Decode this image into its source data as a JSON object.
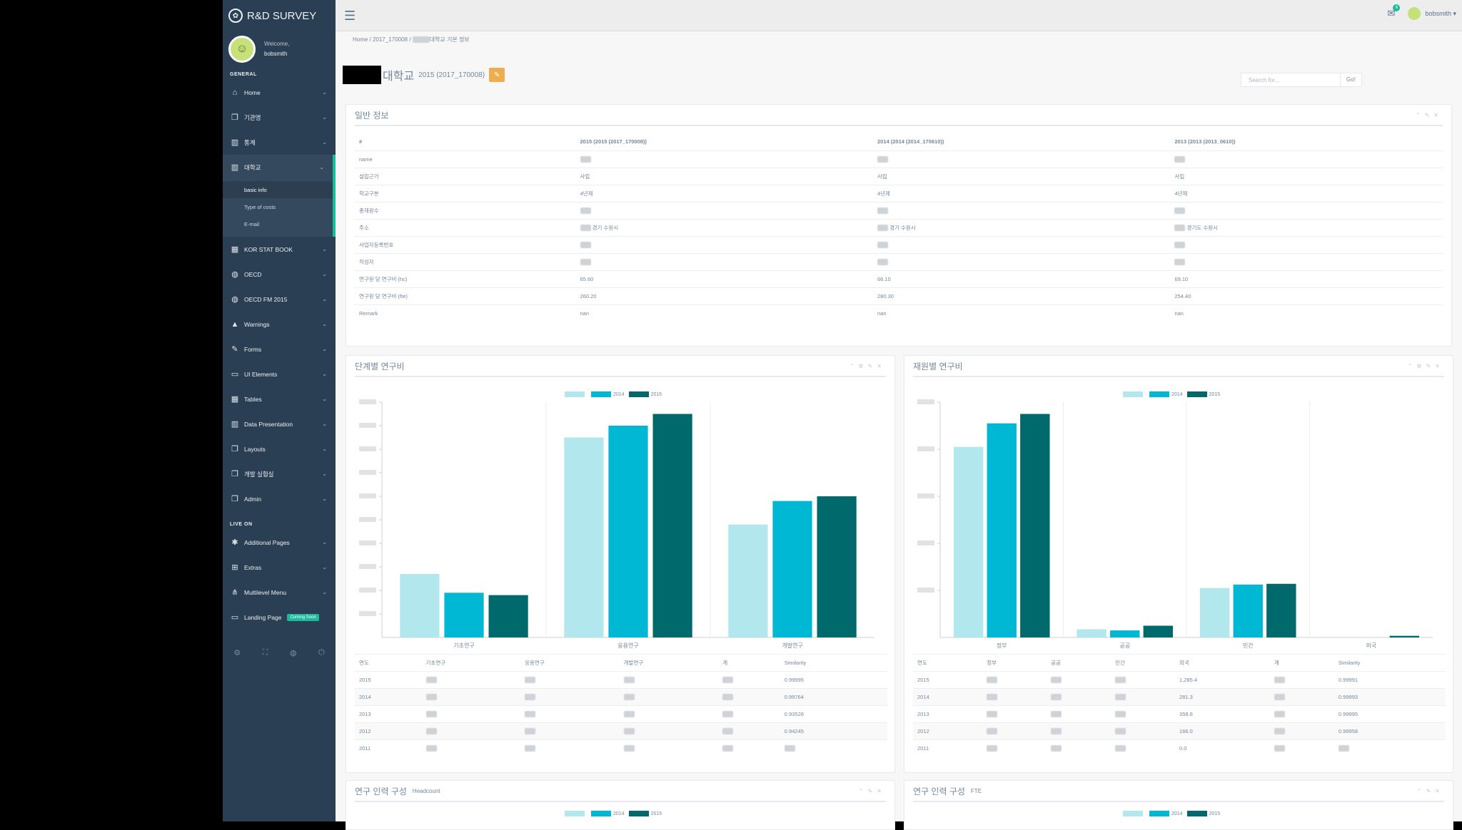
{
  "brand": {
    "title": "R&D SURVEY",
    "icon": "paw-icon"
  },
  "profile": {
    "welcome": "Welcome,",
    "name": "bobsmith"
  },
  "sidebar": {
    "general_label": "GENERAL",
    "items": [
      {
        "label": "Home",
        "icon": "home-icon"
      },
      {
        "label": "기관명",
        "icon": "clone-icon"
      },
      {
        "label": "통계",
        "icon": "bar-chart-icon"
      },
      {
        "label": "대학교",
        "icon": "bar-chart-icon"
      }
    ],
    "sub_items": [
      "basic info",
      "Type of costs",
      "E-mail"
    ],
    "items2": [
      {
        "label": "KOR STAT BOOK",
        "icon": "table-icon"
      },
      {
        "label": "OECD",
        "icon": "globe-icon"
      },
      {
        "label": "OECD FM 2015",
        "icon": "globe-icon"
      },
      {
        "label": "Warnings",
        "icon": "warning-icon"
      },
      {
        "label": "Forms",
        "icon": "edit-icon"
      },
      {
        "label": "UI Elements",
        "icon": "desktop-icon"
      },
      {
        "label": "Tables",
        "icon": "table-icon"
      },
      {
        "label": "Data Presentation",
        "icon": "bar-chart-icon"
      },
      {
        "label": "Layouts",
        "icon": "clone-icon"
      },
      {
        "label": "개발 실험실",
        "icon": "clone-icon"
      },
      {
        "label": "Admin",
        "icon": "clone-icon"
      }
    ],
    "live_label": "LIVE ON",
    "items3": [
      {
        "label": "Additional Pages",
        "icon": "bug-icon"
      },
      {
        "label": "Extras",
        "icon": "windows-icon"
      },
      {
        "label": "Multilevel Menu",
        "icon": "sitemap-icon"
      },
      {
        "label": "Landing Page",
        "icon": "laptop-icon",
        "badge": "Coming Soon"
      }
    ]
  },
  "topbar": {
    "notif_count": "6",
    "user": "bobsmith"
  },
  "breadcrumb": {
    "home": "Home",
    "sep": "/",
    "code": "2017_170008",
    "page": "대학교 기본 정보"
  },
  "page_title": {
    "name": "대학교",
    "subtitle": "2015 (2017_170008)"
  },
  "search": {
    "placeholder": "Search for...",
    "go": "Go!"
  },
  "info_panel": {
    "title": "일반 정보",
    "headers": [
      "#",
      "2015 (2015 (2017_170008))",
      "2014 (2014 (2014_170610))",
      "2013 (2013 (2013_0610))"
    ],
    "rows": [
      {
        "label": "name",
        "v": [
          "",
          "",
          ""
        ]
      },
      {
        "label": "설립근거",
        "v": [
          "사립",
          "사립",
          "사립"
        ]
      },
      {
        "label": "학교구분",
        "v": [
          "4년제",
          "4년제",
          "4년제"
        ]
      },
      {
        "label": "총재원수",
        "v": [
          "",
          "",
          ""
        ]
      },
      {
        "label": "주소",
        "v": [
          "경기 수원시",
          "경기 수원시",
          "경기도 수원시"
        ]
      },
      {
        "label": "사업자등록번호",
        "v": [
          "",
          "",
          ""
        ]
      },
      {
        "label": "작성자",
        "v": [
          "",
          "",
          ""
        ]
      },
      {
        "label": "연구원 당 연구비 (hc)",
        "v": [
          "65.60",
          "66.10",
          "69.10"
        ]
      },
      {
        "label": "연구원 당 연구비 (fte)",
        "v": [
          "260.20",
          "280.30",
          "254.40"
        ]
      },
      {
        "label": "Remark",
        "v": [
          "nan",
          "nan",
          "nan"
        ]
      }
    ]
  },
  "colors": {
    "c2013": "#b2e7ee",
    "c2014": "#00b8d4",
    "c2015": "#00696b"
  },
  "panel_stage": {
    "title": "단계별 연구비",
    "legend": [
      "",
      "2014",
      "2015"
    ],
    "table_headers": [
      "연도",
      "기초연구",
      "응용연구",
      "개발연구",
      "계",
      "Similarity"
    ],
    "table_rows": [
      [
        "2015",
        "",
        "",
        "",
        "",
        "0.99995"
      ],
      [
        "2014",
        "",
        "",
        "",
        "",
        "0.99764"
      ],
      [
        "2013",
        "",
        "",
        "",
        "",
        "0.93528"
      ],
      [
        "2012",
        "",
        "",
        "",
        "",
        "0.94245"
      ],
      [
        "2011",
        "",
        "",
        "",
        "",
        ""
      ]
    ]
  },
  "panel_source": {
    "title": "재원별 연구비",
    "legend": [
      "",
      "2014",
      "2015"
    ],
    "table_headers": [
      "연도",
      "정부",
      "공공",
      "민간",
      "외국",
      "계",
      "Similarity"
    ],
    "table_rows": [
      [
        "2015",
        "",
        "",
        "",
        "1,285.4",
        "",
        "0.99991"
      ],
      [
        "2014",
        "",
        "",
        "",
        "281.3",
        "",
        "0.99993"
      ],
      [
        "2013",
        "",
        "",
        "",
        "358.6",
        "",
        "0.99995"
      ],
      [
        "2012",
        "",
        "",
        "",
        "166.0",
        "",
        "0.99958"
      ],
      [
        "2011",
        "",
        "",
        "",
        "0.0",
        "",
        ""
      ]
    ]
  },
  "panel_hc": {
    "title": "연구 인력 구성",
    "small": "Headcount",
    "legend": [
      "",
      "2014",
      "2015"
    ]
  },
  "panel_fte": {
    "title": "연구 인력 구성",
    "small": "FTE",
    "legend": [
      "",
      "2014",
      "2015"
    ]
  },
  "chart_data": [
    {
      "type": "bar",
      "categories": [
        "기초연구",
        "응용연구",
        "개발연구"
      ],
      "series": [
        {
          "values": [
            27,
            85,
            48
          ]
        },
        {
          "name": "2014",
          "values": [
            19,
            90,
            58
          ]
        },
        {
          "name": "2015",
          "values": [
            18,
            95,
            60
          ]
        }
      ],
      "ylim": [
        0,
        100
      ]
    },
    {
      "type": "bar",
      "categories": [
        "정부",
        "공공",
        "민간",
        "외국"
      ],
      "series": [
        {
          "values": [
            81,
            3.5,
            21,
            0
          ]
        },
        {
          "name": "2014",
          "values": [
            91,
            3,
            22.5,
            0
          ]
        },
        {
          "name": "2015",
          "values": [
            95,
            5,
            22.8,
            0.7
          ]
        }
      ],
      "ylim": [
        0,
        100
      ]
    }
  ]
}
